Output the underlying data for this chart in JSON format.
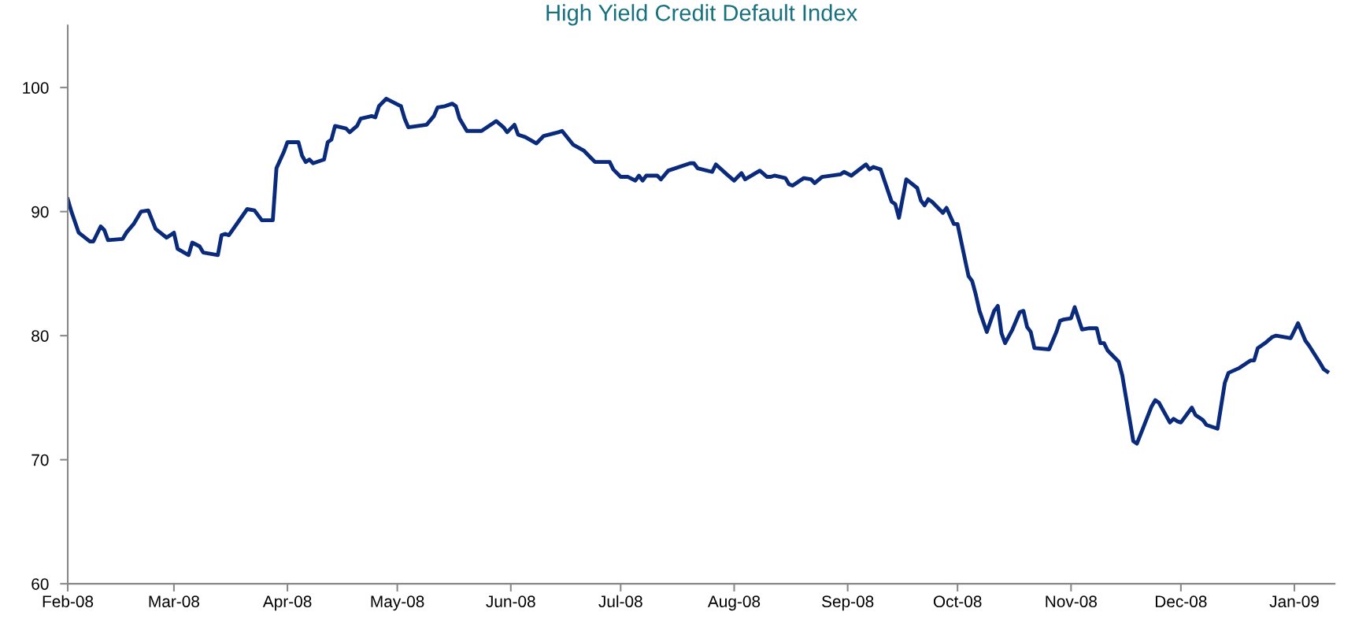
{
  "chart_data": {
    "type": "line",
    "title": "High Yield Credit Default Index",
    "x": [
      "2008-02-01",
      "2008-02-02",
      "2008-02-04",
      "2008-02-07",
      "2008-02-08",
      "2008-02-10",
      "2008-02-11",
      "2008-02-12",
      "2008-02-16",
      "2008-02-17",
      "2008-02-19",
      "2008-02-21",
      "2008-02-23",
      "2008-02-25",
      "2008-02-28",
      "2008-03-01",
      "2008-03-02",
      "2008-03-05",
      "2008-03-06",
      "2008-03-08",
      "2008-03-09",
      "2008-03-13",
      "2008-03-14",
      "2008-03-15",
      "2008-03-16",
      "2008-03-21",
      "2008-03-23",
      "2008-03-25",
      "2008-03-28",
      "2008-03-29",
      "2008-03-31",
      "2008-04-01",
      "2008-04-04",
      "2008-04-05",
      "2008-04-06",
      "2008-04-07",
      "2008-04-08",
      "2008-04-11",
      "2008-04-12",
      "2008-04-13",
      "2008-04-14",
      "2008-04-17",
      "2008-04-18",
      "2008-04-20",
      "2008-04-21",
      "2008-04-24",
      "2008-04-25",
      "2008-04-26",
      "2008-04-28",
      "2008-05-02",
      "2008-05-03",
      "2008-05-04",
      "2008-05-09",
      "2008-05-11",
      "2008-05-12",
      "2008-05-14",
      "2008-05-16",
      "2008-05-17",
      "2008-05-18",
      "2008-05-20",
      "2008-05-24",
      "2008-05-28",
      "2008-05-30",
      "2008-05-31",
      "2008-06-02",
      "2008-06-03",
      "2008-06-05",
      "2008-06-08",
      "2008-06-10",
      "2008-06-14",
      "2008-06-15",
      "2008-06-18",
      "2008-06-21",
      "2008-06-23",
      "2008-06-24",
      "2008-06-28",
      "2008-06-29",
      "2008-07-01",
      "2008-07-03",
      "2008-07-05",
      "2008-07-06",
      "2008-07-07",
      "2008-07-08",
      "2008-07-11",
      "2008-07-12",
      "2008-07-14",
      "2008-07-20",
      "2008-07-21",
      "2008-07-22",
      "2008-07-26",
      "2008-07-27",
      "2008-07-30",
      "2008-08-01",
      "2008-08-03",
      "2008-08-04",
      "2008-08-08",
      "2008-08-10",
      "2008-08-11",
      "2008-08-12",
      "2008-08-15",
      "2008-08-16",
      "2008-08-17",
      "2008-08-20",
      "2008-08-22",
      "2008-08-23",
      "2008-08-25",
      "2008-08-30",
      "2008-08-31",
      "2008-09-02",
      "2008-09-06",
      "2008-09-07",
      "2008-09-08",
      "2008-09-10",
      "2008-09-13",
      "2008-09-14",
      "2008-09-15",
      "2008-09-17",
      "2008-09-20",
      "2008-09-21",
      "2008-09-22",
      "2008-09-23",
      "2008-09-24",
      "2008-09-27",
      "2008-09-28",
      "2008-09-30",
      "2008-10-01",
      "2008-10-04",
      "2008-10-05",
      "2008-10-06",
      "2008-10-07",
      "2008-10-09",
      "2008-10-11",
      "2008-10-12",
      "2008-10-13",
      "2008-10-14",
      "2008-10-16",
      "2008-10-18",
      "2008-10-19",
      "2008-10-20",
      "2008-10-21",
      "2008-10-22",
      "2008-10-26",
      "2008-10-27",
      "2008-10-28",
      "2008-10-29",
      "2008-10-30",
      "2008-11-01",
      "2008-11-02",
      "2008-11-04",
      "2008-11-06",
      "2008-11-08",
      "2008-11-09",
      "2008-11-10",
      "2008-11-11",
      "2008-11-14",
      "2008-11-15",
      "2008-11-18",
      "2008-11-19",
      "2008-11-21",
      "2008-11-23",
      "2008-11-24",
      "2008-11-25",
      "2008-11-28",
      "2008-11-29",
      "2008-11-30",
      "2008-12-01",
      "2008-12-04",
      "2008-12-05",
      "2008-12-07",
      "2008-12-08",
      "2008-12-11",
      "2008-12-13",
      "2008-12-14",
      "2008-12-17",
      "2008-12-20",
      "2008-12-21",
      "2008-12-22",
      "2008-12-24",
      "2008-12-26",
      "2008-12-27",
      "2008-12-31",
      "2009-01-02",
      "2009-01-04",
      "2009-01-05",
      "2009-01-08",
      "2009-01-09",
      "2009-01-10"
    ],
    "series": [
      {
        "color": "#0a2a7c",
        "values": [
          91.0,
          90.0,
          88.3,
          87.6,
          87.6,
          88.8,
          88.5,
          87.7,
          87.8,
          88.3,
          89.0,
          90.0,
          90.1,
          88.6,
          87.9,
          88.3,
          87.0,
          86.5,
          87.5,
          87.2,
          86.7,
          86.5,
          88.1,
          88.2,
          88.1,
          90.2,
          90.1,
          89.3,
          89.3,
          93.5,
          94.8,
          95.6,
          95.6,
          94.5,
          94.0,
          94.2,
          93.9,
          94.2,
          95.6,
          95.8,
          96.9,
          96.7,
          96.4,
          96.9,
          97.5,
          97.7,
          97.6,
          98.5,
          99.1,
          98.5,
          97.5,
          96.8,
          97.0,
          97.7,
          98.4,
          98.5,
          98.7,
          98.5,
          97.5,
          96.5,
          96.5,
          97.3,
          96.8,
          96.4,
          97.0,
          96.2,
          96.0,
          95.5,
          96.1,
          96.4,
          96.5,
          95.4,
          94.9,
          94.3,
          94.0,
          94.0,
          93.4,
          92.8,
          92.8,
          92.5,
          92.9,
          92.5,
          92.9,
          92.9,
          92.6,
          93.3,
          93.9,
          93.9,
          93.5,
          93.2,
          93.8,
          93.0,
          92.5,
          93.1,
          92.6,
          93.3,
          92.8,
          92.8,
          92.9,
          92.7,
          92.2,
          92.1,
          92.7,
          92.6,
          92.3,
          92.8,
          93.0,
          93.2,
          92.9,
          93.8,
          93.4,
          93.6,
          93.4,
          90.8,
          90.6,
          89.5,
          92.6,
          91.9,
          90.9,
          90.5,
          91.0,
          90.8,
          89.9,
          90.3,
          89.0,
          89.0,
          84.8,
          84.4,
          83.3,
          82.0,
          80.3,
          82.0,
          82.4,
          80.2,
          79.4,
          80.5,
          81.9,
          82.0,
          80.7,
          80.3,
          79.0,
          78.9,
          79.6,
          80.3,
          81.2,
          81.3,
          81.4,
          82.3,
          80.5,
          80.6,
          80.6,
          79.4,
          79.4,
          78.8,
          77.9,
          76.8,
          71.5,
          71.3,
          72.8,
          74.3,
          74.8,
          74.6,
          73.0,
          73.3,
          73.1,
          73.0,
          74.2,
          73.6,
          73.2,
          72.8,
          72.5,
          76.2,
          77.0,
          77.4,
          78.0,
          78.0,
          79.0,
          79.4,
          79.9,
          80.0,
          79.8,
          81.0,
          79.6,
          79.2,
          77.8,
          77.3,
          77.1
        ]
      }
    ],
    "xlim": [
      "2008-02-01",
      "2009-01-12"
    ],
    "xticks": [
      {
        "value": "2008-02-01",
        "label": "Feb-08"
      },
      {
        "value": "2008-03-01",
        "label": "Mar-08"
      },
      {
        "value": "2008-04-01",
        "label": "Apr-08"
      },
      {
        "value": "2008-05-01",
        "label": "May-08"
      },
      {
        "value": "2008-06-01",
        "label": "Jun-08"
      },
      {
        "value": "2008-07-01",
        "label": "Jul-08"
      },
      {
        "value": "2008-08-01",
        "label": "Aug-08"
      },
      {
        "value": "2008-09-01",
        "label": "Sep-08"
      },
      {
        "value": "2008-10-01",
        "label": "Oct-08"
      },
      {
        "value": "2008-11-01",
        "label": "Nov-08"
      },
      {
        "value": "2008-12-01",
        "label": "Dec-08"
      },
      {
        "value": "2009-01-01",
        "label": "Jan-09"
      }
    ],
    "ylim": [
      60,
      105
    ],
    "yticks": [
      60,
      70,
      80,
      90,
      100
    ],
    "grid": false,
    "line_style": "solid",
    "marker": "none"
  }
}
